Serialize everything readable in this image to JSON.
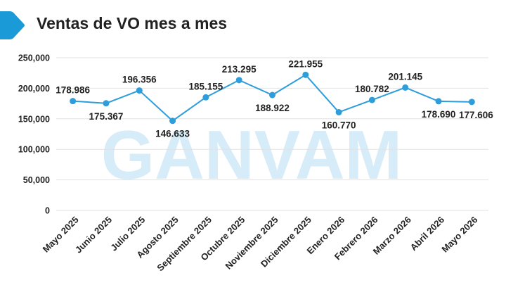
{
  "header": {
    "title": "Ventas de VO mes a mes",
    "accent_color": "#1a9ad6"
  },
  "watermark": {
    "text": "GANVAM",
    "color": "#d6ecf8"
  },
  "chart_data": {
    "type": "line",
    "title": "Ventas de VO mes a mes",
    "xlabel": "",
    "ylabel": "",
    "ylim": [
      0,
      250000
    ],
    "yticks": [
      0,
      50000,
      100000,
      150000,
      200000,
      250000
    ],
    "ytick_labels": [
      "0",
      "50,000",
      "100,000",
      "150,000",
      "200,000",
      "250,000"
    ],
    "grid": true,
    "legend": "none",
    "categories": [
      "Mayo 2025",
      "Junio 2025",
      "Julio 2025",
      "Agosto 2025",
      "Septiembre 2025",
      "Octubre 2025",
      "Noviembre 2025",
      "Diciembre 2025",
      "Enero 2026",
      "Febrero 2026",
      "Marzo 2026",
      "Abril 2026",
      "Mayo 2026"
    ],
    "series": [
      {
        "color": "#2d9ddb",
        "values": [
          178986,
          175367,
          196356,
          146633,
          185155,
          213295,
          188922,
          221955,
          160770,
          180782,
          201145,
          178690,
          177606
        ],
        "data_labels": [
          "178.986",
          "175.367",
          "196.356",
          "146.633",
          "185.155",
          "213.295",
          "188.922",
          "221.955",
          "160.770",
          "180.782",
          "201.145",
          "178.690",
          "177.606"
        ],
        "label_positions": [
          "above",
          "below",
          "above",
          "below",
          "above",
          "above",
          "below",
          "above",
          "below",
          "above",
          "above",
          "below",
          "below"
        ]
      }
    ]
  }
}
